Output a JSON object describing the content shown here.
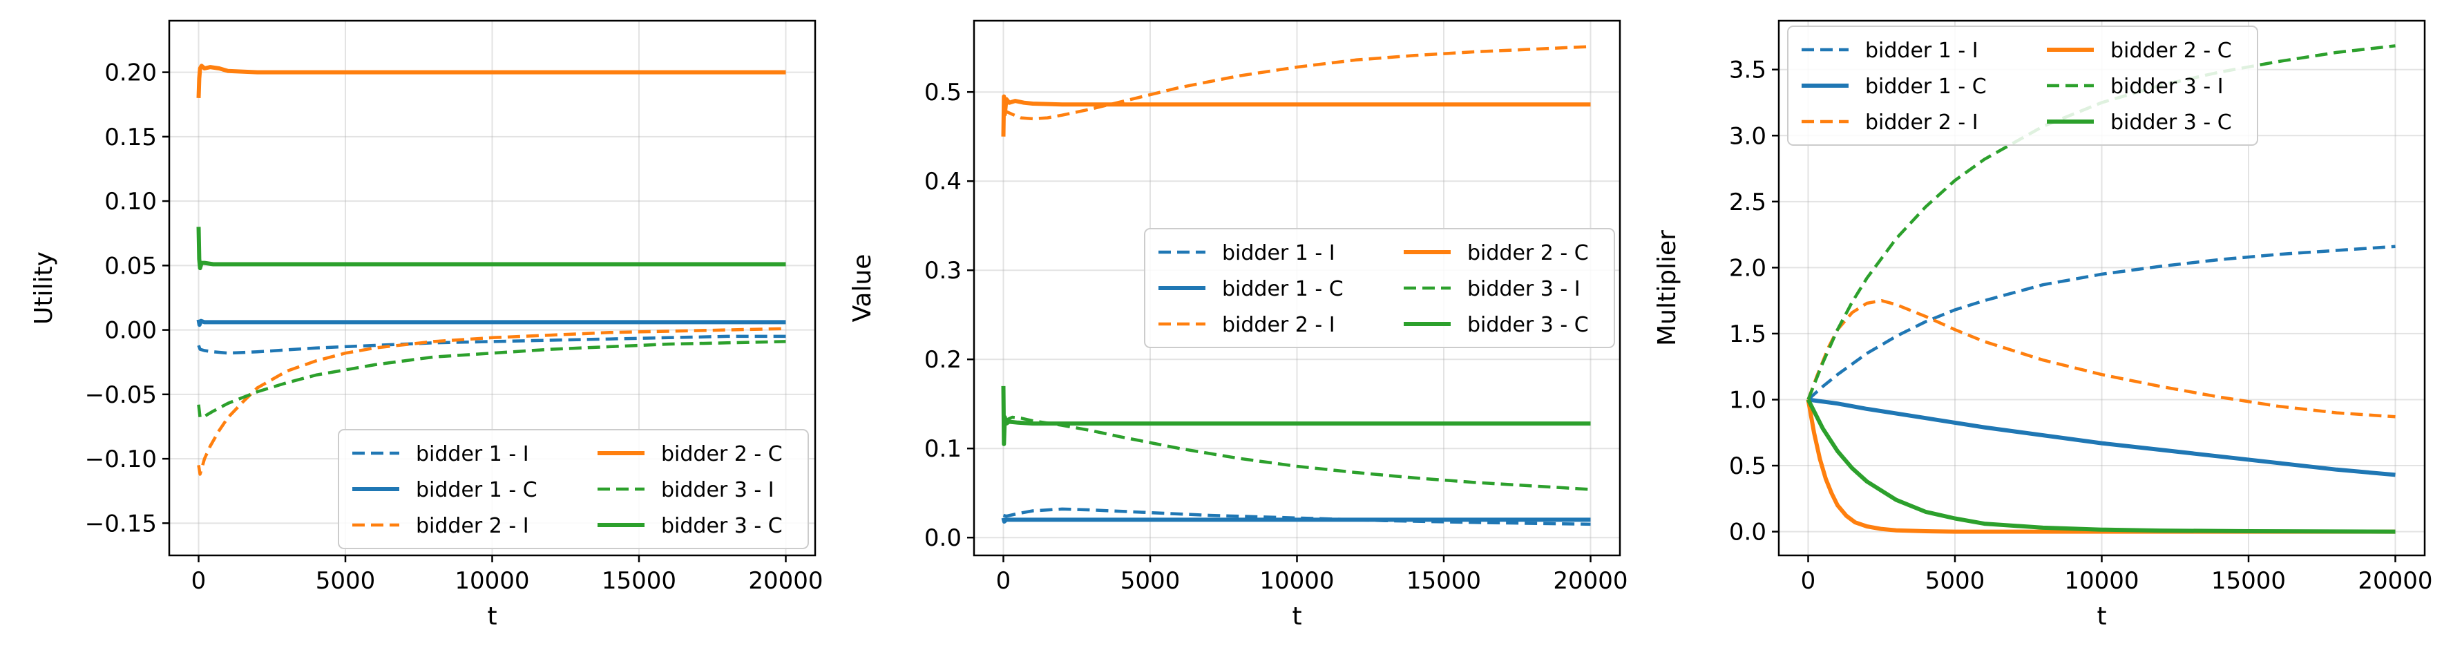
{
  "legend_entries": [
    {
      "label": "bidder 1 - I",
      "color": "#1f77b4",
      "dash": "dashed"
    },
    {
      "label": "bidder 1 - C",
      "color": "#1f77b4",
      "dash": "solid"
    },
    {
      "label": "bidder 2 - I",
      "color": "#ff7f0e",
      "dash": "dashed"
    },
    {
      "label": "bidder 2 - C",
      "color": "#ff7f0e",
      "dash": "solid"
    },
    {
      "label": "bidder 3 - I",
      "color": "#2ca02c",
      "dash": "dashed"
    },
    {
      "label": "bidder 3 - C",
      "color": "#2ca02c",
      "dash": "solid"
    }
  ],
  "chart_data": [
    {
      "type": "line",
      "title": "",
      "xlabel": "t",
      "ylabel": "Utility",
      "xlim": [
        -1000,
        21000
      ],
      "ylim": [
        -0.175,
        0.24
      ],
      "xticks": [
        0,
        5000,
        10000,
        15000,
        20000
      ],
      "yticks": [
        -0.15,
        -0.1,
        -0.05,
        0.0,
        0.05,
        0.1,
        0.15,
        0.2
      ],
      "ytick_labels": [
        "−0.15",
        "−0.10",
        "−0.05",
        "0.00",
        "0.05",
        "0.10",
        "0.15",
        "0.20"
      ],
      "grid": true,
      "legend": "lower-right",
      "series": [
        {
          "name": "bidder 1 - I",
          "color": "#1f77b4",
          "dash": "dashed",
          "x": [
            0,
            50,
            200,
            500,
            1000,
            2000,
            4000,
            6000,
            8000,
            10000,
            12000,
            14000,
            16000,
            18000,
            20000
          ],
          "y": [
            -0.012,
            -0.015,
            -0.016,
            -0.017,
            -0.018,
            -0.017,
            -0.014,
            -0.012,
            -0.01,
            -0.009,
            -0.008,
            -0.007,
            -0.006,
            -0.005,
            -0.005
          ]
        },
        {
          "name": "bidder 1 - C",
          "color": "#1f77b4",
          "dash": "solid",
          "x": [
            0,
            30,
            80,
            200,
            500,
            1000,
            5000,
            10000,
            15000,
            20000
          ],
          "y": [
            0.008,
            0.004,
            0.007,
            0.006,
            0.006,
            0.006,
            0.006,
            0.006,
            0.006,
            0.006
          ]
        },
        {
          "name": "bidder 2 - I",
          "color": "#ff7f0e",
          "dash": "dashed",
          "x": [
            0,
            50,
            100,
            200,
            400,
            700,
            1000,
            1500,
            2000,
            3000,
            4000,
            5000,
            6000,
            8000,
            10000,
            12000,
            14000,
            16000,
            18000,
            20000
          ],
          "y": [
            -0.105,
            -0.112,
            -0.108,
            -0.1,
            -0.09,
            -0.078,
            -0.068,
            -0.056,
            -0.045,
            -0.032,
            -0.024,
            -0.018,
            -0.014,
            -0.009,
            -0.006,
            -0.004,
            -0.002,
            -0.001,
            0.0,
            0.001
          ]
        },
        {
          "name": "bidder 2 - C",
          "color": "#ff7f0e",
          "dash": "solid",
          "x": [
            0,
            20,
            50,
            100,
            200,
            400,
            700,
            1000,
            2000,
            5000,
            10000,
            15000,
            20000
          ],
          "y": [
            0.18,
            0.195,
            0.203,
            0.205,
            0.203,
            0.204,
            0.203,
            0.201,
            0.2,
            0.2,
            0.2,
            0.2,
            0.2
          ]
        },
        {
          "name": "bidder 3 - I",
          "color": "#2ca02c",
          "dash": "dashed",
          "x": [
            0,
            50,
            200,
            500,
            1000,
            2000,
            3000,
            4000,
            6000,
            8000,
            10000,
            12000,
            14000,
            16000,
            18000,
            20000
          ],
          "y": [
            -0.058,
            -0.068,
            -0.067,
            -0.063,
            -0.057,
            -0.048,
            -0.041,
            -0.035,
            -0.027,
            -0.021,
            -0.018,
            -0.015,
            -0.013,
            -0.011,
            -0.01,
            -0.009
          ]
        },
        {
          "name": "bidder 3 - C",
          "color": "#2ca02c",
          "dash": "solid",
          "x": [
            0,
            20,
            50,
            100,
            200,
            500,
            1000,
            2000,
            5000,
            10000,
            15000,
            20000
          ],
          "y": [
            0.08,
            0.055,
            0.048,
            0.052,
            0.052,
            0.051,
            0.051,
            0.051,
            0.051,
            0.051,
            0.051,
            0.051
          ]
        }
      ]
    },
    {
      "type": "line",
      "title": "",
      "xlabel": "t",
      "ylabel": "Value",
      "xlim": [
        -1000,
        21000
      ],
      "ylim": [
        -0.02,
        0.58
      ],
      "xticks": [
        0,
        5000,
        10000,
        15000,
        20000
      ],
      "yticks": [
        0.0,
        0.1,
        0.2,
        0.3,
        0.4,
        0.5
      ],
      "ytick_labels": [
        "0.0",
        "0.1",
        "0.2",
        "0.3",
        "0.4",
        "0.5"
      ],
      "grid": true,
      "legend": "center-right",
      "series": [
        {
          "name": "bidder 1 - I",
          "color": "#1f77b4",
          "dash": "dashed",
          "x": [
            0,
            100,
            500,
            1000,
            2000,
            3000,
            5000,
            7000,
            10000,
            13000,
            16000,
            20000
          ],
          "y": [
            0.025,
            0.024,
            0.027,
            0.03,
            0.032,
            0.031,
            0.028,
            0.025,
            0.022,
            0.019,
            0.017,
            0.015
          ]
        },
        {
          "name": "bidder 1 - C",
          "color": "#1f77b4",
          "dash": "solid",
          "x": [
            0,
            30,
            100,
            500,
            1000,
            5000,
            10000,
            15000,
            20000
          ],
          "y": [
            0.022,
            0.018,
            0.02,
            0.02,
            0.02,
            0.02,
            0.02,
            0.02,
            0.02
          ]
        },
        {
          "name": "bidder 2 - I",
          "color": "#ff7f0e",
          "dash": "dashed",
          "x": [
            0,
            100,
            300,
            600,
            1000,
            1500,
            2000,
            3000,
            4000,
            5000,
            6000,
            8000,
            10000,
            12000,
            14000,
            16000,
            18000,
            20000
          ],
          "y": [
            0.48,
            0.478,
            0.475,
            0.471,
            0.47,
            0.471,
            0.474,
            0.481,
            0.489,
            0.497,
            0.505,
            0.518,
            0.528,
            0.536,
            0.541,
            0.545,
            0.548,
            0.551
          ]
        },
        {
          "name": "bidder 2 - C",
          "color": "#ff7f0e",
          "dash": "solid",
          "x": [
            0,
            20,
            50,
            100,
            200,
            400,
            700,
            1000,
            2000,
            5000,
            10000,
            15000,
            20000
          ],
          "y": [
            0.45,
            0.495,
            0.475,
            0.492,
            0.488,
            0.49,
            0.488,
            0.487,
            0.486,
            0.486,
            0.486,
            0.486,
            0.486
          ]
        },
        {
          "name": "bidder 3 - I",
          "color": "#2ca02c",
          "dash": "dashed",
          "x": [
            0,
            100,
            300,
            600,
            1000,
            2000,
            3000,
            4000,
            6000,
            8000,
            10000,
            12000,
            14000,
            16000,
            18000,
            20000
          ],
          "y": [
            0.13,
            0.132,
            0.135,
            0.134,
            0.131,
            0.126,
            0.12,
            0.113,
            0.1,
            0.089,
            0.08,
            0.073,
            0.067,
            0.062,
            0.058,
            0.054
          ]
        },
        {
          "name": "bidder 3 - C",
          "color": "#2ca02c",
          "dash": "solid",
          "x": [
            0,
            20,
            50,
            100,
            200,
            500,
            1000,
            2000,
            5000,
            10000,
            15000,
            20000
          ],
          "y": [
            0.17,
            0.105,
            0.135,
            0.128,
            0.13,
            0.129,
            0.128,
            0.128,
            0.128,
            0.128,
            0.128,
            0.128
          ]
        }
      ]
    },
    {
      "type": "line",
      "title": "",
      "xlabel": "t",
      "ylabel": "Multiplier",
      "xlim": [
        -1000,
        21000
      ],
      "ylim": [
        -0.18,
        3.87
      ],
      "xticks": [
        0,
        5000,
        10000,
        15000,
        20000
      ],
      "yticks": [
        0.0,
        0.5,
        1.0,
        1.5,
        2.0,
        2.5,
        3.0,
        3.5
      ],
      "ytick_labels": [
        "0.0",
        "0.5",
        "1.0",
        "1.5",
        "2.0",
        "2.5",
        "3.0",
        "3.5"
      ],
      "grid": true,
      "legend": "top-left",
      "series": [
        {
          "name": "bidder 1 - I",
          "color": "#1f77b4",
          "dash": "dashed",
          "x": [
            0,
            500,
            1000,
            2000,
            3000,
            4000,
            5000,
            6000,
            8000,
            10000,
            12000,
            14000,
            16000,
            18000,
            20000
          ],
          "y": [
            1.0,
            1.1,
            1.19,
            1.35,
            1.48,
            1.59,
            1.68,
            1.75,
            1.87,
            1.95,
            2.01,
            2.06,
            2.1,
            2.13,
            2.16
          ]
        },
        {
          "name": "bidder 1 - C",
          "color": "#1f77b4",
          "dash": "solid",
          "x": [
            0,
            1000,
            2000,
            4000,
            6000,
            8000,
            10000,
            12000,
            14000,
            16000,
            18000,
            20000
          ],
          "y": [
            1.0,
            0.97,
            0.93,
            0.86,
            0.79,
            0.73,
            0.67,
            0.62,
            0.57,
            0.52,
            0.47,
            0.43
          ]
        },
        {
          "name": "bidder 2 - I",
          "color": "#ff7f0e",
          "dash": "dashed",
          "x": [
            0,
            300,
            700,
            1000,
            1500,
            2000,
            2500,
            3000,
            4000,
            5000,
            6000,
            8000,
            10000,
            12000,
            14000,
            16000,
            18000,
            20000
          ],
          "y": [
            1.0,
            1.18,
            1.4,
            1.53,
            1.66,
            1.73,
            1.75,
            1.72,
            1.63,
            1.53,
            1.44,
            1.3,
            1.19,
            1.1,
            1.02,
            0.95,
            0.9,
            0.87
          ]
        },
        {
          "name": "bidder 2 - C",
          "color": "#ff7f0e",
          "dash": "solid",
          "x": [
            0,
            200,
            400,
            600,
            800,
            1000,
            1300,
            1600,
            2000,
            2500,
            3000,
            4000,
            5000,
            10000,
            15000,
            20000
          ],
          "y": [
            1.0,
            0.75,
            0.55,
            0.4,
            0.29,
            0.2,
            0.12,
            0.07,
            0.04,
            0.02,
            0.01,
            0.003,
            0.0,
            0.0,
            0.0,
            0.0
          ]
        },
        {
          "name": "bidder 3 - I",
          "color": "#2ca02c",
          "dash": "dashed",
          "x": [
            0,
            500,
            1000,
            1500,
            2000,
            3000,
            4000,
            5000,
            6000,
            8000,
            10000,
            12000,
            14000,
            16000,
            18000,
            20000
          ],
          "y": [
            1.0,
            1.28,
            1.53,
            1.74,
            1.92,
            2.22,
            2.46,
            2.66,
            2.82,
            3.07,
            3.25,
            3.38,
            3.48,
            3.56,
            3.63,
            3.68
          ]
        },
        {
          "name": "bidder 3 - C",
          "color": "#2ca02c",
          "dash": "solid",
          "x": [
            0,
            500,
            1000,
            1500,
            2000,
            3000,
            4000,
            5000,
            6000,
            8000,
            10000,
            12000,
            15000,
            20000
          ],
          "y": [
            1.0,
            0.78,
            0.61,
            0.48,
            0.38,
            0.24,
            0.15,
            0.1,
            0.06,
            0.03,
            0.015,
            0.008,
            0.003,
            0.0
          ]
        }
      ]
    }
  ]
}
